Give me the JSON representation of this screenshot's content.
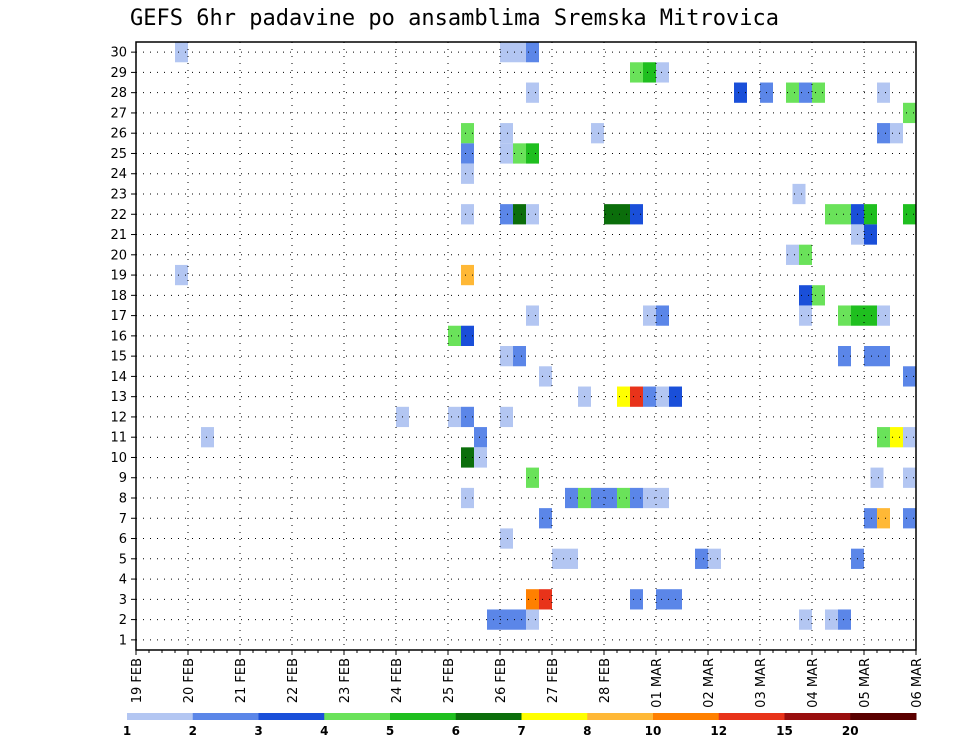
{
  "chart_data": {
    "type": "heatmap",
    "title": "GEFS 6hr padavine po ansamblima Sremska Mitrovica",
    "xlabel": "",
    "ylabel": "",
    "x_ticks": [
      "19 FEB",
      "20 FEB",
      "21 FEB",
      "22 FEB",
      "23 FEB",
      "24 FEB",
      "25 FEB",
      "26 FEB",
      "27 FEB",
      "28 FEB",
      "01 MAR",
      "02 MAR",
      "03 MAR",
      "04 MAR",
      "05 MAR",
      "06 MAR"
    ],
    "y_ticks": [
      "1",
      "2",
      "3",
      "4",
      "5",
      "6",
      "7",
      "8",
      "9",
      "10",
      "11",
      "12",
      "13",
      "14",
      "15",
      "16",
      "17",
      "18",
      "19",
      "20",
      "21",
      "22",
      "23",
      "24",
      "25",
      "26",
      "27",
      "28",
      "29",
      "30"
    ],
    "x_unit": "6-hour steps from 19 FEB 00Z",
    "xlim": [
      0,
      60
    ],
    "ylim": [
      0.5,
      30.5
    ],
    "grid": true,
    "colorbar": {
      "labels": [
        "1",
        "2",
        "3",
        "4",
        "5",
        "6",
        "7",
        "8",
        "10",
        "12",
        "15",
        "20"
      ],
      "colors": [
        "#b3c6f2",
        "#5b86e8",
        "#1a4fd9",
        "#6ae25a",
        "#1fbf1f",
        "#0b6e0b",
        "#ffff00",
        "#ffb836",
        "#ff8000",
        "#e8331a",
        "#990e0e",
        "#5a0000"
      ]
    },
    "cells": [
      [
        30,
        [
          [
            3.5,
            "#b3c6f2"
          ],
          [
            28.5,
            "#b3c6f2"
          ],
          [
            29.5,
            "#b3c6f2"
          ],
          [
            30.5,
            "#5b86e8"
          ]
        ]
      ],
      [
        29,
        [
          [
            38.5,
            "#6ae25a"
          ],
          [
            39.5,
            "#1fbf1f"
          ],
          [
            40.5,
            "#b3c6f2"
          ]
        ]
      ],
      [
        28,
        [
          [
            30.5,
            "#b3c6f2"
          ],
          [
            46.5,
            "#1a4fd9"
          ],
          [
            48.5,
            "#5b86e8"
          ],
          [
            50.5,
            "#6ae25a"
          ],
          [
            51.5,
            "#5b86e8"
          ],
          [
            52.5,
            "#6ae25a"
          ],
          [
            57.5,
            "#b3c6f2"
          ]
        ]
      ],
      [
        27,
        [
          [
            59.5,
            "#6ae25a"
          ]
        ]
      ],
      [
        26,
        [
          [
            25.5,
            "#6ae25a"
          ],
          [
            28.5,
            "#b3c6f2"
          ],
          [
            35.5,
            "#b3c6f2"
          ],
          [
            57.5,
            "#5b86e8"
          ],
          [
            58.5,
            "#b3c6f2"
          ]
        ]
      ],
      [
        25,
        [
          [
            25.5,
            "#5b86e8"
          ],
          [
            28.5,
            "#b3c6f2"
          ],
          [
            29.5,
            "#6ae25a"
          ],
          [
            30.5,
            "#1fbf1f"
          ]
        ]
      ],
      [
        24,
        [
          [
            25.5,
            "#b3c6f2"
          ]
        ]
      ],
      [
        23,
        [
          [
            51.0,
            "#b3c6f2"
          ]
        ]
      ],
      [
        22,
        [
          [
            25.5,
            "#b3c6f2"
          ],
          [
            28.5,
            "#5b86e8"
          ],
          [
            29.5,
            "#0b6e0b"
          ],
          [
            30.5,
            "#b3c6f2"
          ],
          [
            36.5,
            "#0b6e0b"
          ],
          [
            37.5,
            "#0b6e0b"
          ],
          [
            38.5,
            "#1a4fd9"
          ],
          [
            53.5,
            "#6ae25a"
          ],
          [
            54.5,
            "#6ae25a"
          ],
          [
            55.5,
            "#1a4fd9"
          ],
          [
            56.5,
            "#1fbf1f"
          ],
          [
            59.5,
            "#1fbf1f"
          ]
        ]
      ],
      [
        21,
        [
          [
            55.5,
            "#b3c6f2"
          ],
          [
            56.5,
            "#1a4fd9"
          ]
        ]
      ],
      [
        20,
        [
          [
            50.5,
            "#b3c6f2"
          ],
          [
            51.5,
            "#6ae25a"
          ]
        ]
      ],
      [
        19,
        [
          [
            3.5,
            "#b3c6f2"
          ],
          [
            25.5,
            "#ffb836"
          ]
        ]
      ],
      [
        18,
        [
          [
            51.5,
            "#1a4fd9"
          ],
          [
            52.5,
            "#6ae25a"
          ]
        ]
      ],
      [
        17,
        [
          [
            30.5,
            "#b3c6f2"
          ],
          [
            39.5,
            "#b3c6f2"
          ],
          [
            40.5,
            "#5b86e8"
          ],
          [
            51.5,
            "#b3c6f2"
          ],
          [
            54.5,
            "#6ae25a"
          ],
          [
            55.5,
            "#1fbf1f"
          ],
          [
            56.5,
            "#1fbf1f"
          ],
          [
            57.5,
            "#b3c6f2"
          ]
        ]
      ],
      [
        16,
        [
          [
            24.5,
            "#6ae25a"
          ],
          [
            25.5,
            "#1a4fd9"
          ]
        ]
      ],
      [
        15,
        [
          [
            28.5,
            "#b3c6f2"
          ],
          [
            29.5,
            "#5b86e8"
          ],
          [
            54.5,
            "#5b86e8"
          ],
          [
            56.5,
            "#5b86e8"
          ],
          [
            57.5,
            "#5b86e8"
          ]
        ]
      ],
      [
        14,
        [
          [
            31.5,
            "#b3c6f2"
          ],
          [
            59.5,
            "#5b86e8"
          ]
        ]
      ],
      [
        13,
        [
          [
            34.5,
            "#b3c6f2"
          ],
          [
            37.5,
            "#ffff00"
          ],
          [
            38.5,
            "#e8331a"
          ],
          [
            39.5,
            "#5b86e8"
          ],
          [
            40.5,
            "#b3c6f2"
          ],
          [
            41.5,
            "#1a4fd9"
          ]
        ]
      ],
      [
        12,
        [
          [
            20.5,
            "#b3c6f2"
          ],
          [
            24.5,
            "#b3c6f2"
          ],
          [
            25.5,
            "#5b86e8"
          ],
          [
            28.5,
            "#b3c6f2"
          ]
        ]
      ],
      [
        11,
        [
          [
            5.5,
            "#b3c6f2"
          ],
          [
            26.5,
            "#5b86e8"
          ],
          [
            57.5,
            "#6ae25a"
          ],
          [
            58.5,
            "#ffff00"
          ],
          [
            59.5,
            "#b3c6f2"
          ]
        ]
      ],
      [
        10,
        [
          [
            25.5,
            "#0b6e0b"
          ],
          [
            26.5,
            "#b3c6f2"
          ]
        ]
      ],
      [
        9,
        [
          [
            30.5,
            "#6ae25a"
          ],
          [
            57.0,
            "#b3c6f2"
          ],
          [
            59.5,
            "#b3c6f2"
          ]
        ]
      ],
      [
        8,
        [
          [
            25.5,
            "#b3c6f2"
          ],
          [
            33.5,
            "#5b86e8"
          ],
          [
            34.5,
            "#6ae25a"
          ],
          [
            35.5,
            "#5b86e8"
          ],
          [
            36.5,
            "#5b86e8"
          ],
          [
            37.5,
            "#6ae25a"
          ],
          [
            38.5,
            "#5b86e8"
          ],
          [
            39.5,
            "#b3c6f2"
          ],
          [
            40.5,
            "#b3c6f2"
          ]
        ]
      ],
      [
        7,
        [
          [
            31.5,
            "#5b86e8"
          ],
          [
            56.5,
            "#5b86e8"
          ],
          [
            57.5,
            "#ffb836"
          ],
          [
            59.5,
            "#5b86e8"
          ]
        ]
      ],
      [
        6,
        [
          [
            28.5,
            "#b3c6f2"
          ]
        ]
      ],
      [
        5,
        [
          [
            32.5,
            "#b3c6f2"
          ],
          [
            33.5,
            "#b3c6f2"
          ],
          [
            43.5,
            "#5b86e8"
          ],
          [
            44.5,
            "#b3c6f2"
          ],
          [
            55.5,
            "#5b86e8"
          ]
        ]
      ],
      [
        3,
        [
          [
            30.5,
            "#ff8000"
          ],
          [
            31.5,
            "#e8331a"
          ],
          [
            38.5,
            "#5b86e8"
          ],
          [
            40.5,
            "#5b86e8"
          ],
          [
            41.5,
            "#5b86e8"
          ]
        ]
      ],
      [
        2,
        [
          [
            27.5,
            "#5b86e8"
          ],
          [
            28.5,
            "#5b86e8"
          ],
          [
            29.5,
            "#5b86e8"
          ],
          [
            30.5,
            "#b3c6f2"
          ],
          [
            51.5,
            "#b3c6f2"
          ],
          [
            53.5,
            "#b3c6f2"
          ],
          [
            54.5,
            "#5b86e8"
          ]
        ]
      ]
    ]
  }
}
